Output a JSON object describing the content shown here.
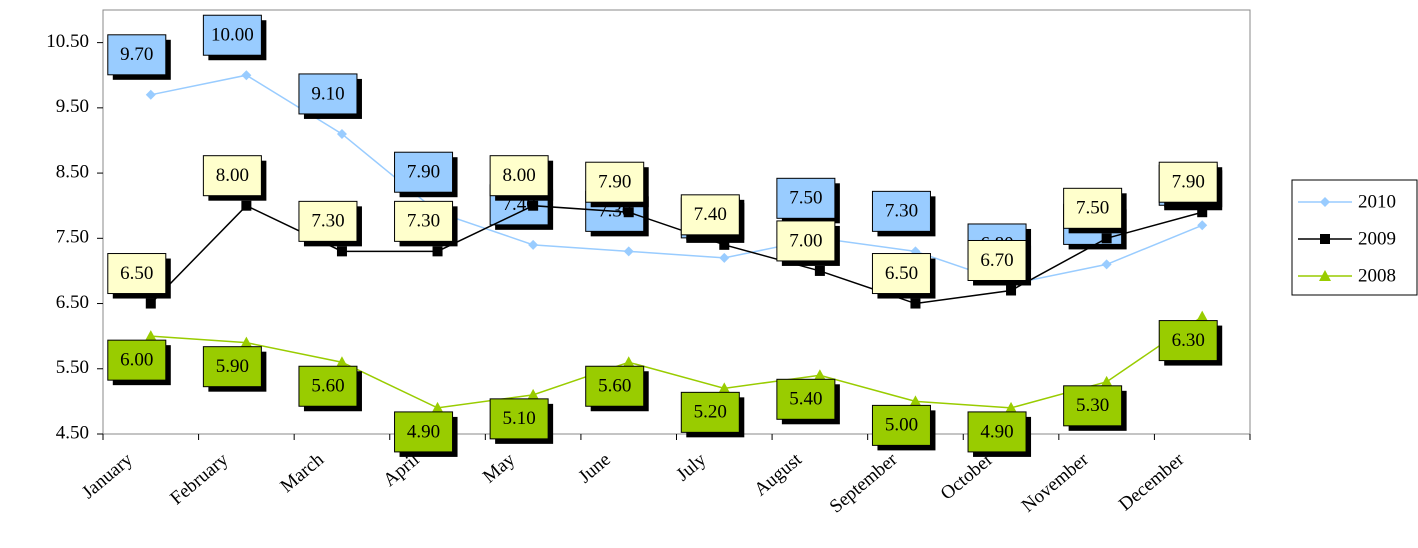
{
  "chart_data": {
    "type": "line",
    "categories": [
      "January",
      "February",
      "March",
      "April",
      "May",
      "June",
      "July",
      "August",
      "September",
      "October",
      "November",
      "December"
    ],
    "series": [
      {
        "name": "2010",
        "color": "#99ccff",
        "label_fill": "#99ccff",
        "marker": "diamond",
        "values": [
          9.7,
          10.0,
          9.1,
          7.9,
          7.4,
          7.3,
          7.2,
          7.5,
          7.3,
          6.8,
          7.1,
          7.7
        ],
        "value_labels": [
          "9.70",
          "10.00",
          "9.10",
          "7.90",
          "7.40",
          "7.30",
          "7.20",
          "7.50",
          "7.30",
          "6.80",
          "7.10",
          "7.70"
        ]
      },
      {
        "name": "2009",
        "color": "#000000",
        "label_fill": "#ffffcc",
        "marker": "square",
        "values": [
          6.5,
          8.0,
          7.3,
          7.3,
          8.0,
          7.9,
          7.4,
          7.0,
          6.5,
          6.7,
          7.5,
          7.9
        ],
        "value_labels": [
          "6.50",
          "8.00",
          "7.30",
          "7.30",
          "8.00",
          "7.90",
          "7.40",
          "7.00",
          "6.50",
          "6.70",
          "7.50",
          "7.90"
        ]
      },
      {
        "name": "2008",
        "color": "#99cc00",
        "label_fill": "#99cc00",
        "marker": "triangle",
        "values": [
          6.0,
          5.9,
          5.6,
          4.9,
          5.1,
          5.6,
          5.2,
          5.4,
          5.0,
          4.9,
          5.3,
          6.3
        ],
        "value_labels": [
          "6.00",
          "5.90",
          "5.60",
          "4.90",
          "5.10",
          "5.60",
          "5.20",
          "5.40",
          "5.00",
          "4.90",
          "5.30",
          "6.30"
        ]
      }
    ],
    "ylim": [
      4.5,
      11.0
    ],
    "yticks": [
      {
        "value": 4.5,
        "label": "4.50"
      },
      {
        "value": 5.5,
        "label": "5.50"
      },
      {
        "value": 6.5,
        "label": "6.50"
      },
      {
        "value": 7.5,
        "label": "7.50"
      },
      {
        "value": 8.5,
        "label": "8.50"
      },
      {
        "value": 9.5,
        "label": "9.50"
      },
      {
        "value": 10.5,
        "label": "10.50"
      }
    ],
    "legend": "right"
  }
}
